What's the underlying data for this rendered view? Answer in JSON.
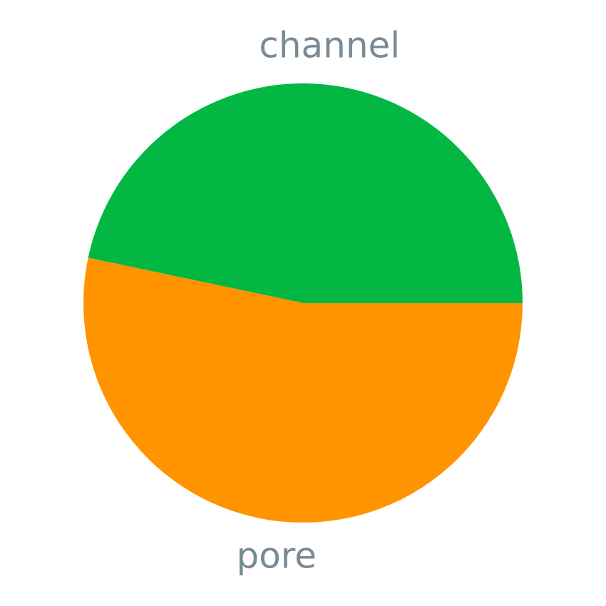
{
  "chart_data": {
    "type": "pie",
    "title": "",
    "start_angle_deg": 0,
    "direction": "counterclockwise",
    "slices": [
      {
        "label": "channel",
        "value": 46.7,
        "color": "#02b843"
      },
      {
        "label": "pore",
        "value": 53.3,
        "color": "#ff9400"
      }
    ],
    "label_color": "#778b96",
    "background_color": "#ffffff"
  }
}
